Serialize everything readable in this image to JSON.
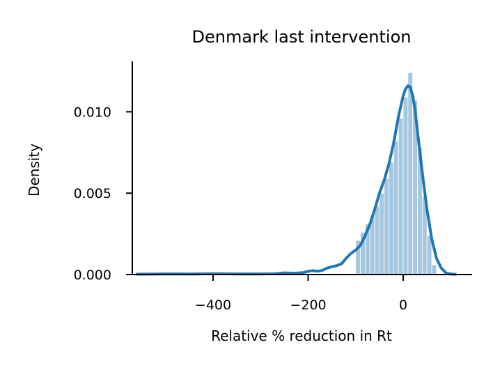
{
  "chart_data": {
    "type": "area",
    "title": "Denmark last intervention",
    "xlabel": "Relative % reduction in Rt",
    "ylabel": "Density",
    "xlim": [
      -570,
      145
    ],
    "ylim": [
      0,
      0.0131
    ],
    "x_ticks": [
      -400,
      -200,
      0
    ],
    "x_tick_labels": [
      "−400",
      "−200",
      "0"
    ],
    "y_ticks": [
      0,
      0.005,
      0.01
    ],
    "y_tick_labels": [
      "0.000",
      "0.005",
      "0.010"
    ],
    "grid": false,
    "legend": "none",
    "spines": "left-bottom",
    "colors": {
      "hist": "#a6c7e0",
      "hist_edge": "#ffffff",
      "kde": "#1f77b4"
    },
    "histogram": {
      "bin_edges": [
        -100,
        -90,
        -80,
        -70,
        -60,
        -50,
        -40,
        -30,
        -20,
        -10,
        0,
        10,
        20,
        30,
        40,
        50,
        60,
        70
      ],
      "heights": [
        0.0021,
        0.0026,
        0.0031,
        0.0036,
        0.0042,
        0.005,
        0.0059,
        0.0069,
        0.0082,
        0.0096,
        0.0109,
        0.0124,
        0.0107,
        0.0078,
        0.0048,
        0.0024,
        0.0006
      ]
    },
    "kde": {
      "x": [
        -560,
        -500,
        -450,
        -400,
        -350,
        -300,
        -270,
        -250,
        -230,
        -210,
        -200,
        -190,
        -180,
        -170,
        -160,
        -150,
        -140,
        -130,
        -120,
        -110,
        -100,
        -90,
        -80,
        -70,
        -60,
        -50,
        -40,
        -30,
        -20,
        -10,
        0,
        5,
        10,
        15,
        20,
        25,
        30,
        40,
        50,
        60,
        70,
        80,
        90,
        100,
        110
      ],
      "y": [
        2e-05,
        4e-05,
        3e-05,
        5e-05,
        4e-05,
        4e-05,
        5e-05,
        0.0001,
        8e-05,
        0.00012,
        0.0002,
        0.00024,
        0.0002,
        0.00026,
        0.0004,
        0.00048,
        0.00055,
        0.00065,
        0.001,
        0.0013,
        0.0015,
        0.0018,
        0.0024,
        0.0031,
        0.004,
        0.005,
        0.0058,
        0.0068,
        0.0081,
        0.0097,
        0.011,
        0.0114,
        0.0116,
        0.0115,
        0.011,
        0.0101,
        0.0088,
        0.0063,
        0.004,
        0.0022,
        0.001,
        0.0004,
        0.0001,
        3e-05,
        1e-05
      ]
    }
  }
}
